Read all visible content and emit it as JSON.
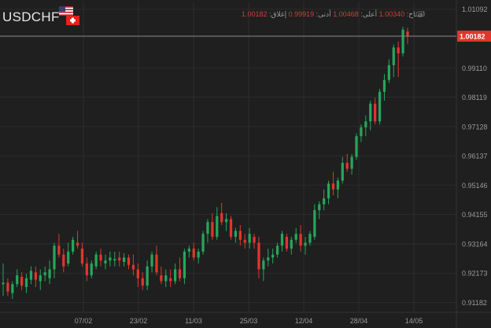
{
  "header": {
    "symbol": "USDCHF",
    "ohlc": {
      "open_label": "افتتاح:",
      "open": "1.00340",
      "high_label": "أعلى:",
      "high": "1.00468",
      "low_label": "أدنى:",
      "low": "0.99919",
      "close_label": "إغلاق:",
      "close": "1.00182"
    }
  },
  "colors": {
    "background": "#1f1f1f",
    "up": "#26a65b",
    "down": "#e0362c",
    "grid": "#2c2c2c",
    "text": "#9a9a9a"
  },
  "chart_data": {
    "type": "candlestick",
    "y_ticks": [
      "1.01092",
      "1.00182",
      "0.99110",
      "0.98119",
      "0.97128",
      "0.96137",
      "0.95146",
      "0.94155",
      "0.93164",
      "0.92173",
      "0.91182"
    ],
    "ylim": [
      0.9085,
      1.0135
    ],
    "last_price": "1.00182",
    "x_ticks": [
      "07/02",
      "23/02",
      "11/03",
      "25/03",
      "12/04",
      "28/04",
      "14/05"
    ],
    "candles": [
      [
        0.918,
        0.925,
        0.914,
        0.9185
      ],
      [
        0.9185,
        0.92,
        0.914,
        0.9155
      ],
      [
        0.915,
        0.919,
        0.913,
        0.918
      ],
      [
        0.918,
        0.923,
        0.917,
        0.921
      ],
      [
        0.9205,
        0.922,
        0.916,
        0.9175
      ],
      [
        0.917,
        0.9215,
        0.915,
        0.92
      ],
      [
        0.9195,
        0.924,
        0.918,
        0.9225
      ],
      [
        0.922,
        0.924,
        0.917,
        0.9195
      ],
      [
        0.919,
        0.923,
        0.916,
        0.921
      ],
      [
        0.921,
        0.924,
        0.919,
        0.922
      ],
      [
        0.92,
        0.926,
        0.918,
        0.923
      ],
      [
        0.923,
        0.932,
        0.92,
        0.931
      ],
      [
        0.931,
        0.935,
        0.927,
        0.928
      ],
      [
        0.928,
        0.93,
        0.922,
        0.924
      ],
      [
        0.925,
        0.932,
        0.924,
        0.929
      ],
      [
        0.929,
        0.934,
        0.928,
        0.933
      ],
      [
        0.932,
        0.936,
        0.93,
        0.931
      ],
      [
        0.93,
        0.932,
        0.924,
        0.925
      ],
      [
        0.925,
        0.927,
        0.919,
        0.921
      ],
      [
        0.921,
        0.926,
        0.92,
        0.925
      ],
      [
        0.924,
        0.929,
        0.923,
        0.928
      ],
      [
        0.928,
        0.93,
        0.924,
        0.926
      ],
      [
        0.925,
        0.928,
        0.923,
        0.926
      ],
      [
        0.926,
        0.929,
        0.924,
        0.927
      ],
      [
        0.926,
        0.929,
        0.924,
        0.9265
      ],
      [
        0.927,
        0.929,
        0.924,
        0.926
      ],
      [
        0.9255,
        0.9285,
        0.924,
        0.927
      ],
      [
        0.927,
        0.928,
        0.923,
        0.9245
      ],
      [
        0.9245,
        0.928,
        0.921,
        0.923
      ],
      [
        0.923,
        0.925,
        0.917,
        0.92
      ],
      [
        0.92,
        0.922,
        0.916,
        0.9175
      ],
      [
        0.9175,
        0.926,
        0.916,
        0.924
      ],
      [
        0.924,
        0.929,
        0.922,
        0.928
      ],
      [
        0.928,
        0.931,
        0.921,
        0.922
      ],
      [
        0.921,
        0.924,
        0.918,
        0.919
      ],
      [
        0.919,
        0.923,
        0.917,
        0.921
      ],
      [
        0.92,
        0.923,
        0.917,
        0.919
      ],
      [
        0.919,
        0.925,
        0.918,
        0.923
      ],
      [
        0.923,
        0.927,
        0.919,
        0.92
      ],
      [
        0.92,
        0.93,
        0.918,
        0.929
      ],
      [
        0.929,
        0.931,
        0.927,
        0.93
      ],
      [
        0.93,
        0.932,
        0.926,
        0.927
      ],
      [
        0.927,
        0.93,
        0.925,
        0.929
      ],
      [
        0.929,
        0.936,
        0.928,
        0.935
      ],
      [
        0.935,
        0.94,
        0.932,
        0.939
      ],
      [
        0.939,
        0.942,
        0.933,
        0.934
      ],
      [
        0.934,
        0.944,
        0.933,
        0.941
      ],
      [
        0.942,
        0.9455,
        0.938,
        0.939
      ],
      [
        0.939,
        0.942,
        0.936,
        0.94
      ],
      [
        0.94,
        0.941,
        0.933,
        0.934
      ],
      [
        0.934,
        0.937,
        0.932,
        0.936
      ],
      [
        0.936,
        0.938,
        0.931,
        0.933
      ],
      [
        0.933,
        0.935,
        0.93,
        0.932
      ],
      [
        0.932,
        0.937,
        0.93,
        0.935
      ],
      [
        0.934,
        0.935,
        0.93,
        0.932
      ],
      [
        0.932,
        0.934,
        0.92,
        0.923
      ],
      [
        0.923,
        0.927,
        0.919,
        0.926
      ],
      [
        0.926,
        0.93,
        0.924,
        0.927
      ],
      [
        0.927,
        0.93,
        0.925,
        0.928
      ],
      [
        0.928,
        0.932,
        0.927,
        0.931
      ],
      [
        0.931,
        0.936,
        0.929,
        0.935
      ],
      [
        0.934,
        0.935,
        0.929,
        0.93
      ],
      [
        0.93,
        0.934,
        0.928,
        0.933
      ],
      [
        0.933,
        0.937,
        0.932,
        0.935
      ],
      [
        0.935,
        0.938,
        0.929,
        0.931
      ],
      [
        0.931,
        0.934,
        0.928,
        0.932
      ],
      [
        0.932,
        0.936,
        0.931,
        0.935
      ],
      [
        0.934,
        0.945,
        0.933,
        0.943
      ],
      [
        0.943,
        0.946,
        0.94,
        0.945
      ],
      [
        0.945,
        0.95,
        0.943,
        0.947
      ],
      [
        0.947,
        0.953,
        0.945,
        0.952
      ],
      [
        0.952,
        0.956,
        0.948,
        0.95
      ],
      [
        0.95,
        0.954,
        0.947,
        0.953
      ],
      [
        0.953,
        0.961,
        0.952,
        0.959
      ],
      [
        0.959,
        0.962,
        0.956,
        0.957
      ],
      [
        0.957,
        0.962,
        0.955,
        0.961
      ],
      [
        0.961,
        0.969,
        0.96,
        0.968
      ],
      [
        0.968,
        0.972,
        0.966,
        0.971
      ],
      [
        0.971,
        0.975,
        0.968,
        0.973
      ],
      [
        0.973,
        0.98,
        0.97,
        0.979
      ],
      [
        0.979,
        0.981,
        0.972,
        0.973
      ],
      [
        0.973,
        0.984,
        0.972,
        0.983
      ],
      [
        0.983,
        0.989,
        0.98,
        0.987
      ],
      [
        0.987,
        0.994,
        0.986,
        0.992
      ],
      [
        0.992,
        0.999,
        0.988,
        0.998
      ],
      [
        0.998,
        1.0,
        0.988,
        0.996
      ],
      [
        0.996,
        1.005,
        0.995,
        1.004
      ],
      [
        1.0034,
        1.0047,
        0.9992,
        1.0018
      ]
    ]
  }
}
